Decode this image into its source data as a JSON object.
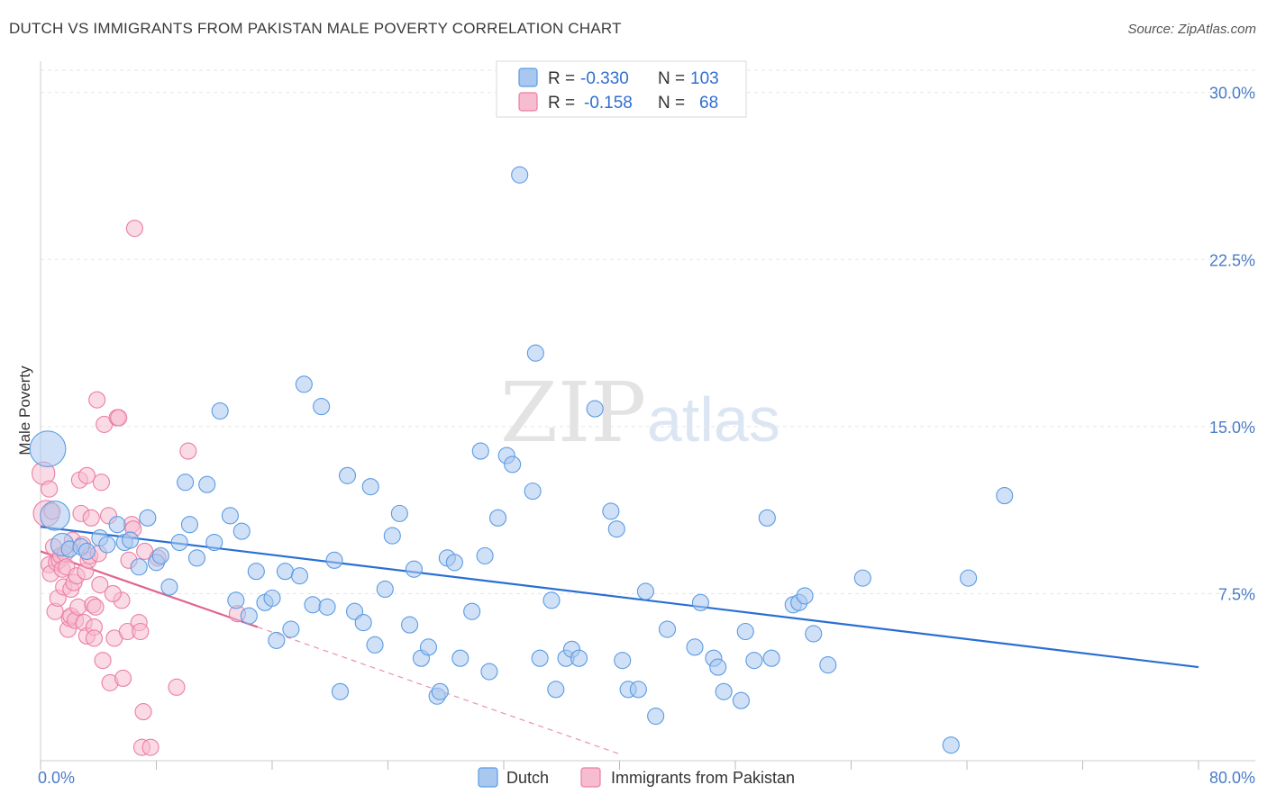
{
  "header": {
    "title": "DUTCH VS IMMIGRANTS FROM PAKISTAN MALE POVERTY CORRELATION CHART",
    "source": "Source: ZipAtlas.com"
  },
  "colors": {
    "blue": "#5b9be3",
    "blue_fill": "#a9c8f0",
    "blue_line": "#2a6fd3",
    "pink": "#ec7ea2",
    "pink_fill": "#f6bccf",
    "pink_line": "#e0648f",
    "grid": "#e5e5e5",
    "tick_text": "#4a7cc9"
  },
  "legend_box": {
    "rows": [
      {
        "r_label": "R =",
        "r_value": "-0.330",
        "n_label": "N =",
        "n_value": "103"
      },
      {
        "r_label": "R =",
        "r_value": "-0.158",
        "n_label": "N =",
        "n_value": "68"
      }
    ]
  },
  "watermark": {
    "zip": "ZIP",
    "atlas": "atlas"
  },
  "chart_data": {
    "type": "scatter",
    "title": "DUTCH VS IMMIGRANTS FROM PAKISTAN MALE POVERTY CORRELATION CHART",
    "xlabel": "",
    "ylabel": "Male Poverty",
    "xlim": [
      0,
      80
    ],
    "ylim": [
      0,
      31
    ],
    "x_tick_labels": [
      "0.0%",
      "80.0%"
    ],
    "y_ticks": [
      {
        "value": 7.5,
        "label": "7.5%"
      },
      {
        "value": 15.0,
        "label": "15.0%"
      },
      {
        "value": 22.5,
        "label": "22.5%"
      },
      {
        "value": 30.0,
        "label": "30.0%"
      }
    ],
    "grid": "horizontal dashed",
    "legend_placement": "top-center",
    "series": [
      {
        "name": "Dutch",
        "color": "#5b9be3",
        "trend": {
          "x": [
            0,
            80
          ],
          "y": [
            10.5,
            4.2
          ]
        },
        "points": [
          [
            0.5,
            14.0,
            2.2
          ],
          [
            1.0,
            11.0,
            1.8
          ],
          [
            1.5,
            9.7,
            1.4
          ],
          [
            2.0,
            9.5,
            1.0
          ],
          [
            2.8,
            9.6,
            1.0
          ],
          [
            3.2,
            9.4,
            1.0
          ],
          [
            4.1,
            10.0,
            1.0
          ],
          [
            4.6,
            9.7,
            1.0
          ],
          [
            5.3,
            10.6,
            1.0
          ],
          [
            5.8,
            9.8,
            1.0
          ],
          [
            6.2,
            9.9,
            1.0
          ],
          [
            6.8,
            8.7,
            1.0
          ],
          [
            7.4,
            10.9,
            1.0
          ],
          [
            8.0,
            8.9,
            1.0
          ],
          [
            8.3,
            9.2,
            1.0
          ],
          [
            8.9,
            7.8,
            1.0
          ],
          [
            9.6,
            9.8,
            1.0
          ],
          [
            10.0,
            12.5,
            1.0
          ],
          [
            10.3,
            10.6,
            1.0
          ],
          [
            10.8,
            9.1,
            1.0
          ],
          [
            11.5,
            12.4,
            1.0
          ],
          [
            12.0,
            9.8,
            1.0
          ],
          [
            12.4,
            15.7,
            1.0
          ],
          [
            13.1,
            11.0,
            1.0
          ],
          [
            13.5,
            7.2,
            1.0
          ],
          [
            13.9,
            10.3,
            1.0
          ],
          [
            14.4,
            6.5,
            1.0
          ],
          [
            14.9,
            8.5,
            1.0
          ],
          [
            15.5,
            7.1,
            1.0
          ],
          [
            16.0,
            7.3,
            1.0
          ],
          [
            16.3,
            5.4,
            1.0
          ],
          [
            16.9,
            8.5,
            1.0
          ],
          [
            17.3,
            5.9,
            1.0
          ],
          [
            17.9,
            8.3,
            1.0
          ],
          [
            18.2,
            16.9,
            1.0
          ],
          [
            18.8,
            7.0,
            1.0
          ],
          [
            19.4,
            15.9,
            1.0
          ],
          [
            19.8,
            6.9,
            1.0
          ],
          [
            20.3,
            9.0,
            1.0
          ],
          [
            20.7,
            3.1,
            1.0
          ],
          [
            21.2,
            12.8,
            1.0
          ],
          [
            21.7,
            6.7,
            1.0
          ],
          [
            22.3,
            6.2,
            1.0
          ],
          [
            22.8,
            12.3,
            1.0
          ],
          [
            23.1,
            5.2,
            1.0
          ],
          [
            23.8,
            7.7,
            1.0
          ],
          [
            24.3,
            10.1,
            1.0
          ],
          [
            24.8,
            11.1,
            1.0
          ],
          [
            25.5,
            6.1,
            1.0
          ],
          [
            25.8,
            8.6,
            1.0
          ],
          [
            26.3,
            4.6,
            1.0
          ],
          [
            26.8,
            5.1,
            1.0
          ],
          [
            27.4,
            2.9,
            1.0
          ],
          [
            27.6,
            3.1,
            1.0
          ],
          [
            28.1,
            9.1,
            1.0
          ],
          [
            28.6,
            8.9,
            1.0
          ],
          [
            29.0,
            4.6,
            1.0
          ],
          [
            29.8,
            6.7,
            1.0
          ],
          [
            30.4,
            13.9,
            1.0
          ],
          [
            30.7,
            9.2,
            1.0
          ],
          [
            31.0,
            4.0,
            1.0
          ],
          [
            31.6,
            10.9,
            1.0
          ],
          [
            32.2,
            13.7,
            1.0
          ],
          [
            32.6,
            13.3,
            1.0
          ],
          [
            33.1,
            26.3,
            1.0
          ],
          [
            34.0,
            12.1,
            1.0
          ],
          [
            34.2,
            18.3,
            1.0
          ],
          [
            34.5,
            4.6,
            1.0
          ],
          [
            35.3,
            7.2,
            1.0
          ],
          [
            35.6,
            3.2,
            1.0
          ],
          [
            36.3,
            4.6,
            1.0
          ],
          [
            36.7,
            5.0,
            1.0
          ],
          [
            37.2,
            4.6,
            1.0
          ],
          [
            38.3,
            15.8,
            1.0
          ],
          [
            39.4,
            11.2,
            1.0
          ],
          [
            39.8,
            10.4,
            1.0
          ],
          [
            40.2,
            4.5,
            1.0
          ],
          [
            40.6,
            3.2,
            1.0
          ],
          [
            41.3,
            3.2,
            1.0
          ],
          [
            41.8,
            7.6,
            1.0
          ],
          [
            42.5,
            2.0,
            1.0
          ],
          [
            43.3,
            5.9,
            1.0
          ],
          [
            45.2,
            5.1,
            1.0
          ],
          [
            45.6,
            7.1,
            1.0
          ],
          [
            46.5,
            4.6,
            1.0
          ],
          [
            46.8,
            4.2,
            1.0
          ],
          [
            47.2,
            3.1,
            1.0
          ],
          [
            48.4,
            2.7,
            1.0
          ],
          [
            48.7,
            5.8,
            1.0
          ],
          [
            49.3,
            4.5,
            1.0
          ],
          [
            50.2,
            10.9,
            1.0
          ],
          [
            50.5,
            4.6,
            1.0
          ],
          [
            52.0,
            7.0,
            1.0
          ],
          [
            52.4,
            7.1,
            1.0
          ],
          [
            52.8,
            7.4,
            1.0
          ],
          [
            53.4,
            5.7,
            1.0
          ],
          [
            54.4,
            4.3,
            1.0
          ],
          [
            56.8,
            8.2,
            1.0
          ],
          [
            62.9,
            0.7,
            1.0
          ],
          [
            64.1,
            8.2,
            1.0
          ],
          [
            66.6,
            11.9,
            1.0
          ]
        ]
      },
      {
        "name": "Immigrants from Pakistan",
        "color": "#ec7ea2",
        "trend": {
          "x": [
            0,
            15
          ],
          "y": [
            9.4,
            6.0
          ],
          "dashed_to": [
            40,
            0.3
          ]
        },
        "points": [
          [
            0.2,
            12.9,
            1.4
          ],
          [
            0.4,
            11.1,
            1.6
          ],
          [
            0.6,
            12.2,
            1.0
          ],
          [
            0.6,
            8.8,
            1.0
          ],
          [
            0.7,
            8.4,
            1.0
          ],
          [
            0.8,
            11.2,
            1.0
          ],
          [
            0.9,
            9.6,
            1.0
          ],
          [
            1.0,
            6.7,
            1.0
          ],
          [
            1.1,
            8.9,
            1.0
          ],
          [
            1.2,
            7.3,
            1.0
          ],
          [
            1.3,
            9.0,
            1.0
          ],
          [
            1.4,
            9.2,
            1.0
          ],
          [
            1.5,
            8.6,
            1.0
          ],
          [
            1.6,
            7.8,
            1.0
          ],
          [
            1.7,
            9.3,
            1.0
          ],
          [
            1.8,
            8.7,
            1.0
          ],
          [
            1.9,
            5.9,
            1.0
          ],
          [
            2.0,
            6.4,
            1.0
          ],
          [
            2.1,
            6.5,
            1.0
          ],
          [
            2.1,
            7.7,
            1.0
          ],
          [
            2.2,
            9.9,
            1.0
          ],
          [
            2.3,
            8.0,
            1.0
          ],
          [
            2.4,
            6.3,
            1.0
          ],
          [
            2.5,
            8.3,
            1.0
          ],
          [
            2.6,
            6.9,
            1.0
          ],
          [
            2.7,
            12.6,
            1.0
          ],
          [
            2.8,
            11.1,
            1.0
          ],
          [
            2.9,
            9.7,
            1.0
          ],
          [
            3.0,
            6.2,
            1.0
          ],
          [
            3.1,
            8.5,
            1.0
          ],
          [
            3.2,
            12.8,
            1.0
          ],
          [
            3.2,
            5.6,
            1.0
          ],
          [
            3.3,
            9.0,
            1.0
          ],
          [
            3.4,
            9.2,
            1.0
          ],
          [
            3.5,
            10.9,
            1.0
          ],
          [
            3.6,
            7.0,
            1.0
          ],
          [
            3.7,
            6.0,
            1.0
          ],
          [
            3.7,
            5.5,
            1.0
          ],
          [
            3.8,
            6.9,
            1.0
          ],
          [
            3.9,
            16.2,
            1.0
          ],
          [
            4.0,
            9.3,
            1.0
          ],
          [
            4.1,
            7.9,
            1.0
          ],
          [
            4.2,
            12.5,
            1.0
          ],
          [
            4.3,
            4.5,
            1.0
          ],
          [
            4.4,
            15.1,
            1.0
          ],
          [
            4.7,
            11.0,
            1.0
          ],
          [
            4.8,
            3.5,
            1.0
          ],
          [
            5.1,
            5.5,
            1.0
          ],
          [
            5.3,
            15.4,
            1.0
          ],
          [
            5.4,
            15.4,
            1.0
          ],
          [
            5.6,
            7.2,
            1.0
          ],
          [
            5.7,
            3.7,
            1.0
          ],
          [
            6.0,
            5.8,
            1.0
          ],
          [
            6.1,
            9.0,
            1.0
          ],
          [
            6.3,
            10.6,
            1.0
          ],
          [
            6.4,
            10.4,
            1.0
          ],
          [
            6.5,
            23.9,
            1.0
          ],
          [
            6.8,
            6.2,
            1.0
          ],
          [
            6.9,
            5.8,
            1.0
          ],
          [
            7.0,
            0.6,
            1.0
          ],
          [
            7.1,
            2.2,
            1.0
          ],
          [
            7.2,
            9.4,
            1.0
          ],
          [
            7.6,
            0.6,
            1.0
          ],
          [
            8.1,
            9.1,
            1.0
          ],
          [
            9.4,
            3.3,
            1.0
          ],
          [
            10.2,
            13.9,
            1.0
          ],
          [
            13.6,
            6.6,
            1.0
          ],
          [
            5.0,
            7.5,
            1.0
          ]
        ]
      }
    ]
  },
  "bottom_legend": {
    "items": [
      {
        "label": "Dutch"
      },
      {
        "label": "Immigrants from Pakistan"
      }
    ]
  }
}
